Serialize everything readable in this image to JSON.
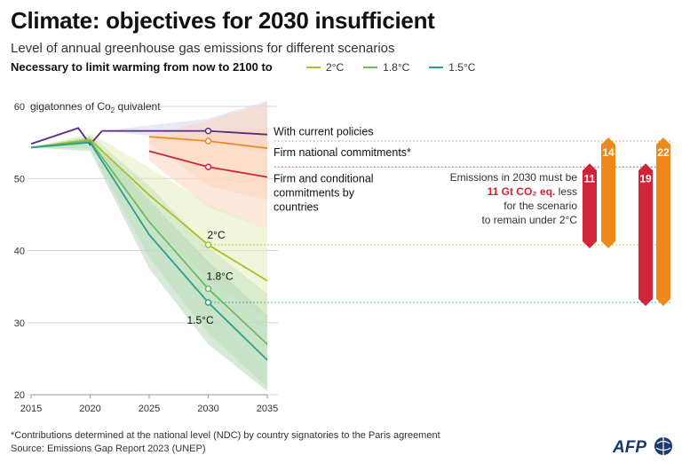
{
  "header": {
    "title": "Climate: objectives for 2030 insufficient",
    "subtitle": "Level of annual greenhouse gas emissions for different scenarios",
    "subhead": "Necessary to limit warming from now to 2100 to"
  },
  "legend": [
    {
      "label": "2°C",
      "color": "#a6c22a"
    },
    {
      "label": "1.8°C",
      "color": "#6fbb5f"
    },
    {
      "label": "1.5°C",
      "color": "#2aa08c"
    }
  ],
  "footer": {
    "footnote": "*Contributions determined at the national level (NDC) by country signatories to the Paris agreement",
    "source": "Source: Emissions Gap Report 2023 (UNEP)",
    "logo": "AFP"
  },
  "chart_data": {
    "type": "line",
    "ylabel": "gigatonnes of Co₂ quivalent",
    "ylim": [
      20,
      60
    ],
    "yticks": [
      20,
      30,
      40,
      50,
      60
    ],
    "xlim": [
      2015,
      2035
    ],
    "xticks": [
      2015,
      2020,
      2025,
      2030,
      2035
    ],
    "historical": {
      "color": "#5b2a86",
      "x": [
        2015,
        2019,
        2020,
        2021
      ],
      "y": [
        54.8,
        57.0,
        54.7,
        56.6
      ]
    },
    "series": [
      {
        "name": "With current policies",
        "color": "#5b2a86",
        "band": "#d6d6ee",
        "x": [
          2021,
          2030,
          2035
        ],
        "y": [
          56.6,
          56.6,
          56.1
        ],
        "upper": [
          56.6,
          58.3,
          60.8
        ],
        "lower": [
          56.6,
          55.2,
          53.5
        ]
      },
      {
        "name": "Firm national commitments*",
        "color": "#ef8a1a",
        "band": "#fbd6bd",
        "x": [
          2025,
          2030,
          2035
        ],
        "y": [
          55.8,
          55.2,
          54.2
        ],
        "upper": [
          56.0,
          58.0,
          60.5
        ],
        "lower": [
          55.0,
          49.0,
          47.0
        ]
      },
      {
        "name": "Firm and conditional commitments by countries",
        "color": "#d0243a",
        "band": "#fbd6bd",
        "x": [
          2025,
          2030,
          2035
        ],
        "y": [
          53.8,
          51.6,
          50.2
        ],
        "upper": [
          55.5,
          56.5,
          57.0
        ],
        "lower": [
          52.5,
          46.0,
          43.0
        ]
      },
      {
        "name": "2°C",
        "color": "#a6c22a",
        "band": "#e3edbd",
        "x": [
          2015,
          2020,
          2025,
          2030,
          2035
        ],
        "y": [
          54.3,
          55.4,
          47.7,
          40.8,
          35.8
        ],
        "upper": [
          54.3,
          56.3,
          51.5,
          46.5,
          43.0
        ],
        "lower": [
          54.3,
          54.5,
          44.0,
          36.0,
          30.5
        ]
      },
      {
        "name": "1.8°C",
        "color": "#6fbb5f",
        "band": "#c9e4bf",
        "x": [
          2015,
          2020,
          2025,
          2030,
          2035
        ],
        "y": [
          54.3,
          55.2,
          44.0,
          34.7,
          27.0
        ],
        "upper": [
          54.3,
          56.0,
          49.0,
          40.5,
          34.0
        ],
        "lower": [
          54.3,
          54.2,
          39.0,
          28.5,
          21.0
        ]
      },
      {
        "name": "1.5°C",
        "color": "#2aa08c",
        "band": "#b4d9b6",
        "x": [
          2015,
          2020,
          2025,
          2030,
          2035
        ],
        "y": [
          54.3,
          55.0,
          42.2,
          32.8,
          24.8
        ],
        "upper": [
          54.3,
          55.8,
          47.0,
          38.5,
          31.0
        ],
        "lower": [
          54.3,
          53.8,
          37.5,
          27.0,
          20.5
        ]
      }
    ],
    "point_labels": [
      {
        "text": "2°C",
        "x": 2030,
        "y": 40.8
      },
      {
        "text": "1.8°C",
        "x": 2030,
        "y": 34.7
      },
      {
        "text": "1.5°C",
        "x": 2030,
        "y": 32.8
      }
    ],
    "gaps": [
      {
        "from_series": "Firm and conditional commitments by countries",
        "to_series": "2°C",
        "value": 11,
        "color": "#d0243a"
      },
      {
        "from_series": "Firm national commitments*",
        "to_series": "2°C",
        "value": 14,
        "color": "#ef8a1a"
      },
      {
        "from_series": "Firm and conditional commitments by countries",
        "to_series": "1.5°C",
        "value": 19,
        "color": "#d0243a"
      },
      {
        "from_series": "Firm national commitments*",
        "to_series": "1.5°C",
        "value": 22,
        "color": "#ef8a1a"
      }
    ],
    "annotation": {
      "line1": "Emissions in 2030 must be",
      "highlight": "11 Gt CO₂ eq.",
      "line2_rest": " less",
      "line3": "for the scenario",
      "line4": "to remain under 2°C"
    }
  }
}
